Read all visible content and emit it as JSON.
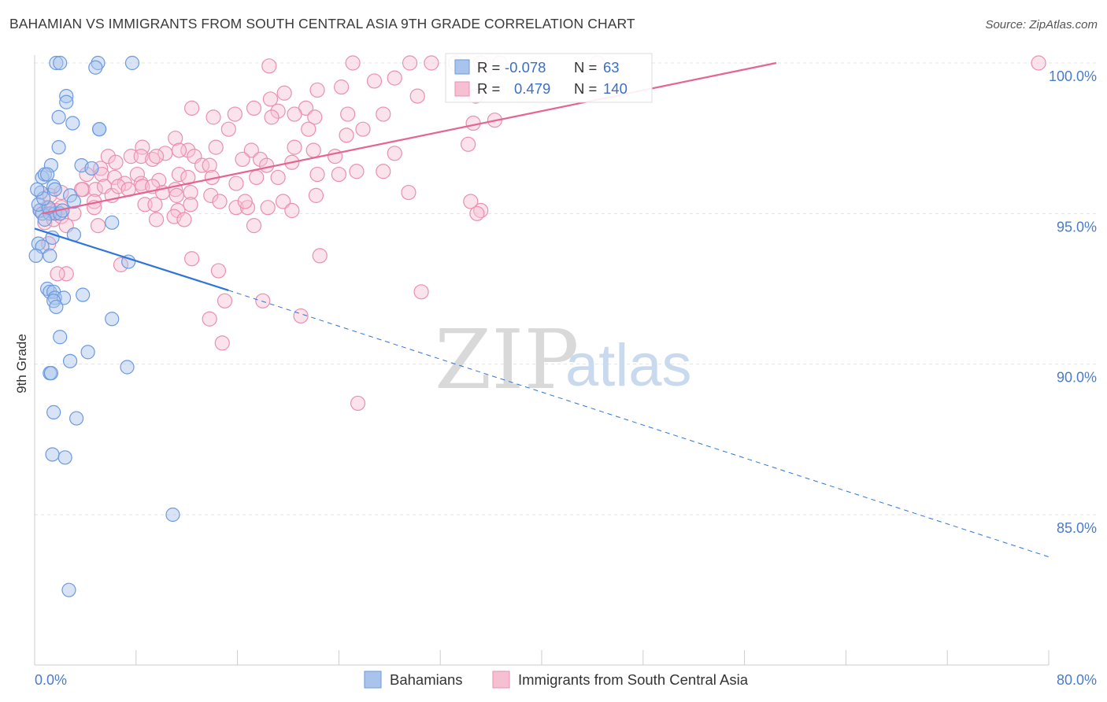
{
  "header": {
    "title": "BAHAMIAN VS IMMIGRANTS FROM SOUTH CENTRAL ASIA 9TH GRADE CORRELATION CHART",
    "source": "Source: ZipAtlas.com"
  },
  "watermark": {
    "zip": "ZIP",
    "atlas": "atlas"
  },
  "colors": {
    "blue_fill": "#a9c4ec",
    "blue_stroke": "#6a9ae0",
    "blue_line": "#2f74d8",
    "pink_fill": "#f7c0d2",
    "pink_stroke": "#ea8fb0",
    "pink_line": "#e7648f",
    "grid": "#e3e3e3",
    "tick_text": "#4a7cc9"
  },
  "stats_box": {
    "rows": [
      {
        "r_label": "R = ",
        "r_value": "-0.078",
        "n_label": "N = ",
        "n_value": "63"
      },
      {
        "r_label": "R = ",
        "r_value": "0.479",
        "n_label": "N = ",
        "n_value": "140"
      }
    ]
  },
  "legend": {
    "items": [
      {
        "label": "Bahamians"
      },
      {
        "label": "Immigrants from South Central Asia"
      }
    ]
  },
  "chart_data": {
    "type": "scatter",
    "title": "BAHAMIAN VS IMMIGRANTS FROM SOUTH CENTRAL ASIA 9TH GRADE CORRELATION CHART",
    "ylabel": "9th Grade",
    "xlabel": "",
    "x_tick_labels": [
      "0.0%",
      "80.0%"
    ],
    "y_tick_labels": [
      "100.0%",
      "95.0%",
      "90.0%",
      "85.0%"
    ],
    "y_ticks": [
      100,
      95,
      90,
      85
    ],
    "xlim": [
      0,
      80
    ],
    "ylim": [
      80.5,
      100.4
    ],
    "grid": true,
    "legend_position": "bottom",
    "series": [
      {
        "name": "Bahamians",
        "color": "blue",
        "trend": {
          "x": [
            0,
            15.3
          ],
          "y": [
            94.5,
            92.45
          ],
          "dashed_to": [
            80,
            83.6
          ]
        },
        "points": [
          [
            1.7,
            100
          ],
          [
            2,
            100
          ],
          [
            5,
            100
          ],
          [
            7.7,
            100
          ],
          [
            4.8,
            99.85
          ],
          [
            2.5,
            98.9
          ],
          [
            2.5,
            98.7
          ],
          [
            1.9,
            98.2
          ],
          [
            3,
            98.0
          ],
          [
            5.1,
            97.8
          ],
          [
            5.1,
            97.8
          ],
          [
            1.9,
            97.2
          ],
          [
            1.3,
            96.6
          ],
          [
            3.7,
            96.6
          ],
          [
            4.5,
            96.5
          ],
          [
            0.6,
            96.2
          ],
          [
            0.8,
            96.3
          ],
          [
            1.5,
            95.9
          ],
          [
            0.5,
            95.7
          ],
          [
            1.6,
            95.8
          ],
          [
            2.8,
            95.6
          ],
          [
            3.1,
            95.4
          ],
          [
            0.4,
            95.1
          ],
          [
            0.6,
            95.0
          ],
          [
            1.2,
            95.0
          ],
          [
            1.6,
            95.0
          ],
          [
            2.0,
            95.0
          ],
          [
            6.1,
            94.7
          ],
          [
            3.1,
            94.3
          ],
          [
            1.4,
            94.2
          ],
          [
            0.3,
            94.0
          ],
          [
            0.6,
            93.9
          ],
          [
            1.2,
            93.6
          ],
          [
            7.4,
            93.4
          ],
          [
            1.0,
            92.5
          ],
          [
            1.2,
            92.4
          ],
          [
            1.5,
            92.4
          ],
          [
            1.6,
            92.2
          ],
          [
            3.8,
            92.3
          ],
          [
            2.3,
            92.2
          ],
          [
            1.5,
            92.1
          ],
          [
            1.7,
            91.9
          ],
          [
            6.1,
            91.5
          ],
          [
            2.0,
            90.9
          ],
          [
            4.2,
            90.4
          ],
          [
            2.8,
            90.1
          ],
          [
            7.3,
            89.9
          ],
          [
            1.2,
            89.7
          ],
          [
            1.3,
            89.7
          ],
          [
            1.5,
            88.4
          ],
          [
            3.3,
            88.2
          ],
          [
            1.4,
            87.0
          ],
          [
            2.4,
            86.9
          ],
          [
            10.9,
            85.0
          ],
          [
            2.7,
            82.5
          ],
          [
            0.1,
            93.6
          ],
          [
            0.3,
            95.3
          ],
          [
            0.8,
            94.8
          ],
          [
            2.2,
            95.1
          ],
          [
            1.1,
            95.2
          ],
          [
            0.7,
            95.5
          ],
          [
            1.0,
            96.3
          ],
          [
            0.2,
            95.8
          ]
        ]
      },
      {
        "name": "Immigrants from South Central Asia",
        "color": "pink",
        "trend": {
          "x": [
            0.6,
            58.5
          ],
          "y": [
            95.0,
            100.0
          ]
        },
        "points": [
          [
            79.2,
            100
          ],
          [
            44.4,
            100
          ],
          [
            36.7,
            100
          ],
          [
            35.2,
            100
          ],
          [
            31.3,
            100
          ],
          [
            25.1,
            100
          ],
          [
            29.6,
            100
          ],
          [
            33.2,
            100
          ],
          [
            18.5,
            99.9
          ],
          [
            28.4,
            99.5
          ],
          [
            26.8,
            99.4
          ],
          [
            24.2,
            99.2
          ],
          [
            19.7,
            99.0
          ],
          [
            18.6,
            98.8
          ],
          [
            22.3,
            99.1
          ],
          [
            30.2,
            98.9
          ],
          [
            34.8,
            98.9
          ],
          [
            12.4,
            98.5
          ],
          [
            17.3,
            98.5
          ],
          [
            21.4,
            98.5
          ],
          [
            27.5,
            98.3
          ],
          [
            19.2,
            98.4
          ],
          [
            15.8,
            98.3
          ],
          [
            20.5,
            98.3
          ],
          [
            24.7,
            98.3
          ],
          [
            18.7,
            98.2
          ],
          [
            22.1,
            98.2
          ],
          [
            14.1,
            98.2
          ],
          [
            36.3,
            98.1
          ],
          [
            34.6,
            98.0
          ],
          [
            25.9,
            97.8
          ],
          [
            15.3,
            97.8
          ],
          [
            21.6,
            97.8
          ],
          [
            20.5,
            97.2
          ],
          [
            11.1,
            97.5
          ],
          [
            24.6,
            97.6
          ],
          [
            8.5,
            97.2
          ],
          [
            12.1,
            97.1
          ],
          [
            7.6,
            96.9
          ],
          [
            10.3,
            97.0
          ],
          [
            11.4,
            97.1
          ],
          [
            14.3,
            97.2
          ],
          [
            17.1,
            97.1
          ],
          [
            17.8,
            96.8
          ],
          [
            22.0,
            97.1
          ],
          [
            23.7,
            96.9
          ],
          [
            28.4,
            97.0
          ],
          [
            34.2,
            97.3
          ],
          [
            12.6,
            96.9
          ],
          [
            5.8,
            96.9
          ],
          [
            5.2,
            96.5
          ],
          [
            4.1,
            96.3
          ],
          [
            6.4,
            96.7
          ],
          [
            8.4,
            96.9
          ],
          [
            9.3,
            96.8
          ],
          [
            9.6,
            96.9
          ],
          [
            13.2,
            96.6
          ],
          [
            13.8,
            96.6
          ],
          [
            16.4,
            96.8
          ],
          [
            18.3,
            96.6
          ],
          [
            19.2,
            96.2
          ],
          [
            20.3,
            96.7
          ],
          [
            22.3,
            96.3
          ],
          [
            24.0,
            96.3
          ],
          [
            25.4,
            96.4
          ],
          [
            27.5,
            96.4
          ],
          [
            8.1,
            96.3
          ],
          [
            11.4,
            96.3
          ],
          [
            12.1,
            96.2
          ],
          [
            5.3,
            96.3
          ],
          [
            6.3,
            96.2
          ],
          [
            7.1,
            96.0
          ],
          [
            8.4,
            96.0
          ],
          [
            9.8,
            96.1
          ],
          [
            14.0,
            96.2
          ],
          [
            15.9,
            96.0
          ],
          [
            17.5,
            96.2
          ],
          [
            3.8,
            95.8
          ],
          [
            4.8,
            95.8
          ],
          [
            5.5,
            95.9
          ],
          [
            6.1,
            95.6
          ],
          [
            6.6,
            95.9
          ],
          [
            7.4,
            95.8
          ],
          [
            8.5,
            95.9
          ],
          [
            9.3,
            95.9
          ],
          [
            10.1,
            95.7
          ],
          [
            11.1,
            95.8
          ],
          [
            12.3,
            95.7
          ],
          [
            13.9,
            95.6
          ],
          [
            15.9,
            95.2
          ],
          [
            16.8,
            95.2
          ],
          [
            18.4,
            95.2
          ],
          [
            22.2,
            95.6
          ],
          [
            29.5,
            95.7
          ],
          [
            34.4,
            95.4
          ],
          [
            35.2,
            95.1
          ],
          [
            34.9,
            95.0
          ],
          [
            1.2,
            95.6
          ],
          [
            2.1,
            95.7
          ],
          [
            3.7,
            95.8
          ],
          [
            4.7,
            95.4
          ],
          [
            8.7,
            95.3
          ],
          [
            9.5,
            95.3
          ],
          [
            11.2,
            95.6
          ],
          [
            12.3,
            95.3
          ],
          [
            14.6,
            95.4
          ],
          [
            16.6,
            95.4
          ],
          [
            19.6,
            95.4
          ],
          [
            20.3,
            95.1
          ],
          [
            1.0,
            95.2
          ],
          [
            1.3,
            95.1
          ],
          [
            1.7,
            95.1
          ],
          [
            2.1,
            95.2
          ],
          [
            3.1,
            95.0
          ],
          [
            4.7,
            95.2
          ],
          [
            11.3,
            95.1
          ],
          [
            0.5,
            95.1
          ],
          [
            0.8,
            94.7
          ],
          [
            1.5,
            94.8
          ],
          [
            2.1,
            94.9
          ],
          [
            2.5,
            94.6
          ],
          [
            5.0,
            94.6
          ],
          [
            9.6,
            94.8
          ],
          [
            11.0,
            94.9
          ],
          [
            11.8,
            94.8
          ],
          [
            17.3,
            94.6
          ],
          [
            1.1,
            94.0
          ],
          [
            12.4,
            93.5
          ],
          [
            6.8,
            93.3
          ],
          [
            14.5,
            93.1
          ],
          [
            22.5,
            93.6
          ],
          [
            30.5,
            92.4
          ],
          [
            15.0,
            92.1
          ],
          [
            18.0,
            92.1
          ],
          [
            21.0,
            91.6
          ],
          [
            13.8,
            91.5
          ],
          [
            14.8,
            90.7
          ],
          [
            25.5,
            88.7
          ],
          [
            2.5,
            93.0
          ],
          [
            1.8,
            93.0
          ]
        ]
      }
    ]
  }
}
